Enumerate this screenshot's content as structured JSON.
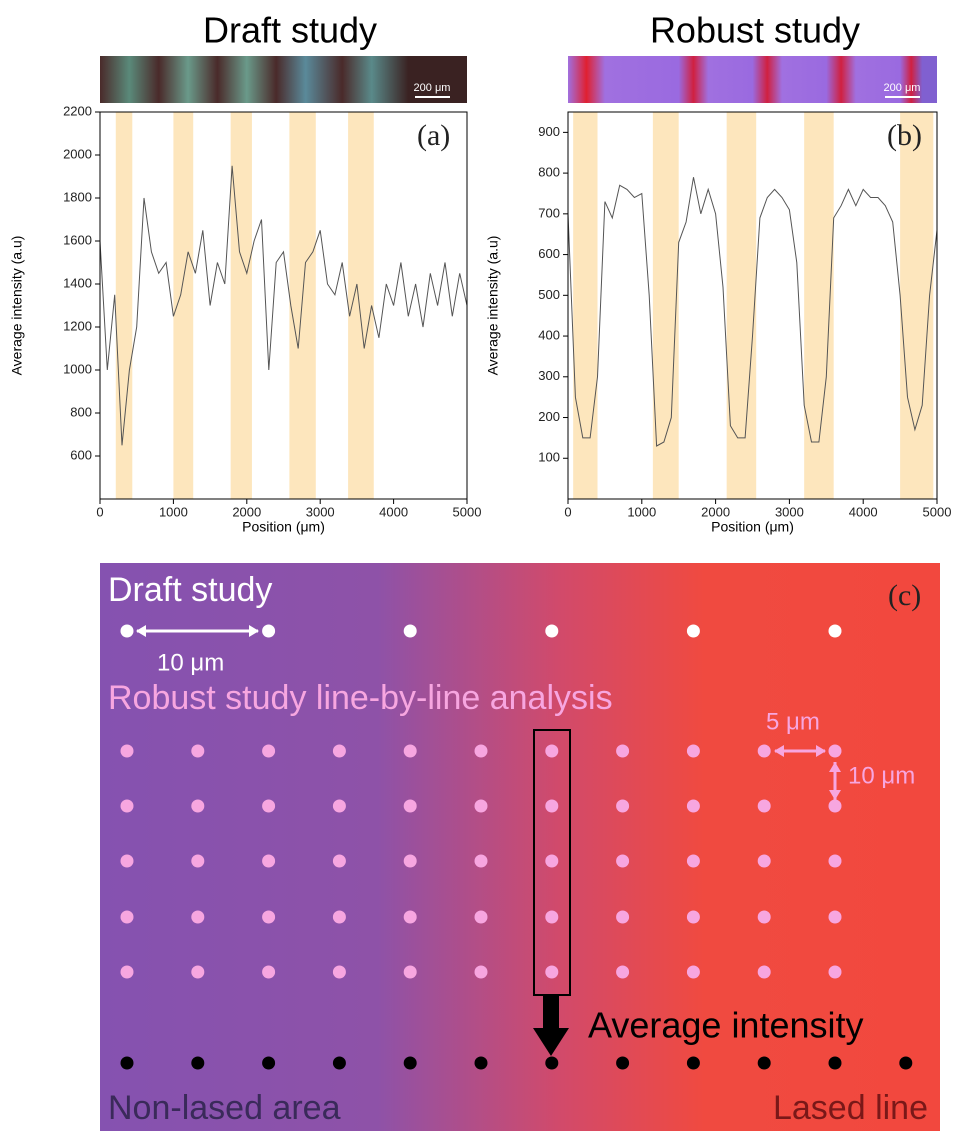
{
  "chart_data": [
    {
      "type": "line",
      "title": "Draft study",
      "panel_label": "(a)",
      "scalebar_label": "200 μm",
      "xlabel": "Position (μm)",
      "ylabel": "Average intensity (a.u)",
      "xlim": [
        0,
        5000
      ],
      "ylim": [
        400,
        2200
      ],
      "xticks": [
        0,
        1000,
        2000,
        3000,
        4000,
        5000
      ],
      "yticks": [
        600,
        800,
        1000,
        1200,
        1400,
        1600,
        1800,
        2000,
        2200
      ],
      "bands": [
        [
          215,
          440
        ],
        [
          1000,
          1270
        ],
        [
          1780,
          2070
        ],
        [
          2580,
          2940
        ],
        [
          3380,
          3730
        ]
      ],
      "band_color": "#fde6bd",
      "color": "#555555",
      "x": [
        0,
        100,
        200,
        300,
        400,
        500,
        600,
        700,
        800,
        900,
        1000,
        1100,
        1200,
        1300,
        1400,
        1500,
        1600,
        1700,
        1800,
        1900,
        2000,
        2100,
        2200,
        2300,
        2400,
        2500,
        2600,
        2700,
        2800,
        2900,
        3000,
        3100,
        3200,
        3300,
        3400,
        3500,
        3600,
        3700,
        3800,
        3900,
        4000,
        4100,
        4200,
        4300,
        4400,
        4500,
        4600,
        4700,
        4800,
        4900,
        5000
      ],
      "values": [
        1600,
        1000,
        1350,
        650,
        1000,
        1200,
        1800,
        1550,
        1450,
        1500,
        1250,
        1350,
        1550,
        1450,
        1650,
        1300,
        1500,
        1400,
        1950,
        1550,
        1450,
        1600,
        1700,
        1000,
        1500,
        1550,
        1300,
        1100,
        1500,
        1550,
        1650,
        1400,
        1350,
        1500,
        1250,
        1400,
        1100,
        1300,
        1150,
        1400,
        1300,
        1500,
        1250,
        1400,
        1200,
        1450,
        1300,
        1500,
        1250,
        1450,
        1300
      ]
    },
    {
      "type": "line",
      "title": "Robust study",
      "panel_label": "(b)",
      "scalebar_label": "200 μm",
      "xlabel": "Position (μm)",
      "ylabel": "Average intensity (a.u)",
      "xlim": [
        0,
        5000
      ],
      "ylim": [
        0,
        950
      ],
      "xticks": [
        0,
        1000,
        2000,
        3000,
        4000,
        5000
      ],
      "yticks": [
        100,
        200,
        300,
        400,
        500,
        600,
        700,
        800,
        900
      ],
      "bands": [
        [
          70,
          400
        ],
        [
          1150,
          1500
        ],
        [
          2150,
          2550
        ],
        [
          3200,
          3600
        ],
        [
          4500,
          4950
        ]
      ],
      "band_color": "#fde6bd",
      "color": "#555555",
      "x": [
        0,
        100,
        200,
        300,
        400,
        500,
        600,
        700,
        800,
        900,
        1000,
        1100,
        1200,
        1300,
        1400,
        1500,
        1600,
        1700,
        1800,
        1900,
        2000,
        2100,
        2200,
        2300,
        2400,
        2500,
        2600,
        2700,
        2800,
        2900,
        3000,
        3100,
        3200,
        3300,
        3400,
        3500,
        3600,
        3700,
        3800,
        3900,
        4000,
        4100,
        4200,
        4300,
        4400,
        4500,
        4600,
        4700,
        4800,
        4900,
        5000
      ],
      "values": [
        700,
        250,
        150,
        150,
        300,
        730,
        690,
        770,
        760,
        740,
        750,
        500,
        130,
        140,
        200,
        630,
        680,
        790,
        700,
        760,
        700,
        520,
        180,
        150,
        150,
        400,
        690,
        740,
        760,
        740,
        710,
        580,
        230,
        140,
        140,
        300,
        690,
        720,
        760,
        720,
        760,
        740,
        740,
        720,
        680,
        500,
        250,
        170,
        230,
        500,
        660
      ]
    }
  ],
  "diagram": {
    "panel_label": "(c)",
    "draft_label": "Draft study",
    "draft_spacing": "10 μm",
    "robust_label": "Robust study line-by-line analysis",
    "h_spacing": "5 μm",
    "v_spacing": "10 μm",
    "arrow_label": "Average intensity",
    "left_label": "Non-lased area",
    "right_label": "Lased line"
  }
}
